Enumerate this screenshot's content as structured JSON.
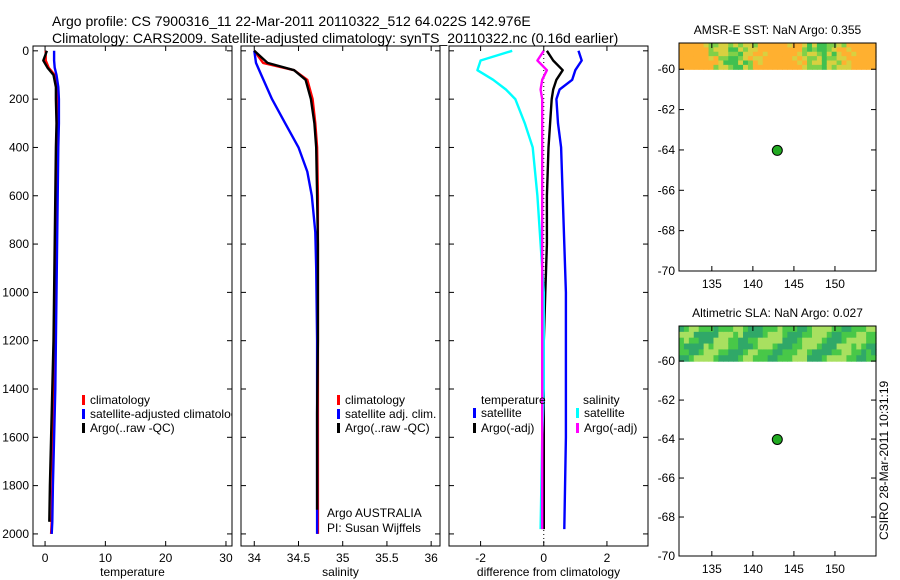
{
  "header": {
    "title_line1": "Argo profile: CS 7900316_11 22-Mar-2011 20110322_512 64.022S 142.976E",
    "title_line2": "Climatology: CARS2009. Satellite-adjusted climatology: synTS_20110322.nc (0.16d earlier)"
  },
  "colors": {
    "red": "#ff0000",
    "blue": "#0000ff",
    "black": "#000000",
    "cyan": "#00ffff",
    "magenta": "#ff00ff",
    "marker": "#22aa22"
  },
  "chart_data": [
    {
      "id": "temperature",
      "type": "line",
      "xlabel": "temperature",
      "ylabel": "",
      "xlim": [
        -2,
        31
      ],
      "ylim": [
        2050,
        -20
      ],
      "xticks": [
        0,
        10,
        20,
        30
      ],
      "yticks": [
        0,
        200,
        400,
        600,
        800,
        1000,
        1200,
        1400,
        1600,
        1800,
        2000
      ],
      "legend": [
        "climatology",
        "satellite-adjusted climatology",
        "Argo(..raw -QC)"
      ],
      "series": [
        {
          "name": "climatology",
          "color": "red",
          "x": [
            0.1,
            0.1,
            0.6,
            1.6,
            2.0,
            2.1,
            2.0,
            1.9,
            1.8,
            1.7,
            1.6,
            1.5,
            1.4,
            1.3,
            1.2,
            1.1,
            1.0
          ],
          "y": [
            0,
            40,
            70,
            100,
            150,
            200,
            300,
            400,
            600,
            800,
            1000,
            1200,
            1400,
            1600,
            1800,
            1950,
            2000
          ]
        },
        {
          "name": "satellite-adjusted climatology",
          "color": "blue",
          "x": [
            1.5,
            1.5,
            1.6,
            1.9,
            2.2,
            2.3,
            2.3,
            2.2,
            2.1,
            2.0,
            1.9,
            1.8,
            1.7,
            1.5,
            1.3,
            1.2,
            1.1
          ],
          "y": [
            0,
            40,
            70,
            100,
            150,
            200,
            300,
            400,
            600,
            800,
            1000,
            1200,
            1400,
            1600,
            1800,
            1950,
            2000
          ]
        },
        {
          "name": "Argo(..raw -QC)",
          "color": "black",
          "x": [
            0.3,
            -0.3,
            0.4,
            1.4,
            1.8,
            1.8,
            1.9,
            1.8,
            1.7,
            1.6,
            1.5,
            1.4,
            1.2,
            1.0,
            0.8,
            0.7
          ],
          "y": [
            0,
            40,
            70,
            100,
            150,
            200,
            300,
            400,
            600,
            800,
            1000,
            1200,
            1400,
            1600,
            1800,
            1950
          ]
        }
      ],
      "annotation": []
    },
    {
      "id": "salinity",
      "type": "line",
      "xlabel": "salinity",
      "ylabel": "",
      "xlim": [
        33.85,
        36.1
      ],
      "ylim": [
        2050,
        -20
      ],
      "xticks": [
        34,
        34.5,
        35,
        35.5,
        36
      ],
      "xtick_labels": [
        "34",
        "34.5",
        "35",
        "35.5",
        "36"
      ],
      "legend": [
        "climatology",
        "satellite adj. clim.",
        "Argo(..raw -QC)"
      ],
      "series": [
        {
          "name": "climatology",
          "color": "red",
          "x": [
            34.0,
            34.1,
            34.45,
            34.6,
            34.66,
            34.69,
            34.71,
            34.72,
            34.72,
            34.72,
            34.72,
            34.72,
            34.72,
            34.72
          ],
          "y": [
            0,
            50,
            80,
            120,
            200,
            300,
            400,
            600,
            800,
            1000,
            1200,
            1500,
            1800,
            2000
          ]
        },
        {
          "name": "satellite adj. clim.",
          "color": "blue",
          "x": [
            34.0,
            34.02,
            34.08,
            34.2,
            34.35,
            34.5,
            34.6,
            34.65,
            34.69,
            34.7,
            34.71,
            34.71,
            34.71,
            34.71
          ],
          "y": [
            0,
            50,
            100,
            200,
            300,
            400,
            500,
            600,
            750,
            900,
            1200,
            1500,
            1800,
            2000
          ]
        },
        {
          "name": "Argo(..raw -QC)",
          "color": "black",
          "x": [
            34.0,
            34.15,
            34.45,
            34.58,
            34.64,
            34.68,
            34.7,
            34.71,
            34.72,
            34.72,
            34.72,
            34.71,
            34.71
          ],
          "y": [
            0,
            50,
            80,
            120,
            200,
            300,
            400,
            600,
            800,
            1000,
            1200,
            1500,
            1900
          ]
        }
      ],
      "annotation": [
        "Argo AUSTRALIA",
        "PI: Susan Wijffels"
      ]
    },
    {
      "id": "difference",
      "type": "line",
      "xlabel": "difference from climatology",
      "ylabel": "",
      "xlim": [
        -3,
        3.3
      ],
      "ylim": [
        2050,
        -20
      ],
      "xticks": [
        -2,
        0,
        2
      ],
      "legend_left_title": "temperature",
      "legend_right_title": "salinity",
      "legend": [
        "satellite",
        "Argo(-adj)",
        "satellite",
        "Argo(-adj)"
      ],
      "series": [
        {
          "name": "temperature satellite",
          "color": "blue",
          "x": [
            1.1,
            1.2,
            1.0,
            0.9,
            0.5,
            0.4,
            0.45,
            0.55,
            0.6,
            0.65,
            0.7,
            0.7,
            0.7,
            0.7,
            0.65
          ],
          "y": [
            0,
            40,
            80,
            120,
            160,
            200,
            300,
            400,
            600,
            800,
            1000,
            1200,
            1400,
            1600,
            1980
          ]
        },
        {
          "name": "temperature Argo(-adj)",
          "color": "black",
          "x": [
            0.1,
            0.3,
            0.6,
            0.4,
            0.3,
            0.25,
            0.2,
            0.15,
            0.1,
            0.1,
            0.05,
            0.0,
            0.0,
            0.0,
            0.0
          ],
          "y": [
            0,
            40,
            80,
            120,
            160,
            200,
            300,
            400,
            600,
            800,
            1000,
            1200,
            1400,
            1600,
            1980
          ]
        },
        {
          "name": "salinity satellite",
          "color": "cyan",
          "x": [
            -1.0,
            -2.0,
            -2.1,
            -1.6,
            -1.2,
            -0.9,
            -0.6,
            -0.35,
            -0.2,
            -0.1,
            0.0,
            0.0,
            0.0,
            -0.05,
            -0.1
          ],
          "y": [
            0,
            40,
            80,
            120,
            160,
            200,
            300,
            400,
            600,
            800,
            1000,
            1200,
            1400,
            1600,
            1980
          ]
        },
        {
          "name": "salinity Argo(-adj)",
          "color": "magenta",
          "x": [
            0.0,
            -0.2,
            0.1,
            -0.05,
            -0.1,
            -0.05,
            -0.05,
            -0.05,
            -0.05,
            -0.05,
            -0.05,
            -0.05,
            -0.05,
            -0.05,
            -0.05
          ],
          "y": [
            0,
            40,
            80,
            120,
            160,
            200,
            300,
            400,
            600,
            800,
            1000,
            1200,
            1400,
            1600,
            1980
          ]
        }
      ],
      "annotation": []
    },
    {
      "id": "sst_map",
      "type": "heatmap",
      "title": "AMSR-E SST: NaN Argo: 0.355",
      "xlim": [
        131,
        155
      ],
      "ylim": [
        -70,
        -58.7
      ],
      "xticks": [
        135,
        140,
        145,
        150
      ],
      "yticks": [
        -60,
        -62,
        -64,
        -66,
        -68,
        -70
      ],
      "data_lat_range": [
        -60,
        -58.7
      ],
      "marker": {
        "lon": 142.976,
        "lat": -64.022
      }
    },
    {
      "id": "sla_map",
      "type": "heatmap",
      "title": "Altimetric SLA: NaN Argo: 0.027",
      "xlim": [
        131,
        155
      ],
      "ylim": [
        -70,
        -58.2
      ],
      "xticks": [
        135,
        140,
        145,
        150
      ],
      "yticks": [
        -60,
        -62,
        -64,
        -66,
        -68,
        -70
      ],
      "data_lat_range": [
        -60,
        -58.2
      ],
      "marker": {
        "lon": 142.976,
        "lat": -64.022
      }
    }
  ],
  "side_label": "CSIRO 28-Mar-2011 10:31:19"
}
